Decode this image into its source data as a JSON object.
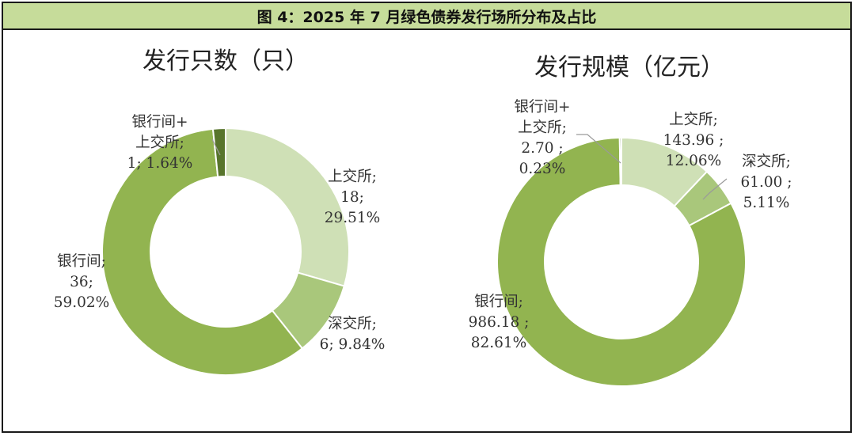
{
  "figure": {
    "title": "图 4：2025 年 7 月绿色债券发行场所分布及占比"
  },
  "chart_data": [
    {
      "type": "pie",
      "variant": "donut",
      "title": "发行只数（只）",
      "categories": [
        "上交所",
        "深交所",
        "银行间",
        "银行间+上交所"
      ],
      "values": [
        18,
        6,
        36,
        1
      ],
      "percents": [
        "29.51%",
        "9.84%",
        "59.02%",
        "1.64%"
      ],
      "colors": [
        "#cfe0b6",
        "#a9c77b",
        "#92b450",
        "#58752c"
      ],
      "labels": [
        [
          "上交所;",
          "18;",
          "29.51%"
        ],
        [
          "深交所;",
          "6; 9.84%"
        ],
        [
          "银行间;",
          "36;",
          "59.02%"
        ],
        [
          "银行间+",
          "上交所;",
          "1; 1.64%"
        ]
      ]
    },
    {
      "type": "pie",
      "variant": "donut",
      "title": "发行规模（亿元）",
      "categories": [
        "上交所",
        "深交所",
        "银行间",
        "银行间+上交所"
      ],
      "values": [
        143.96,
        61.0,
        986.18,
        2.7
      ],
      "percents": [
        "12.06%",
        "5.11%",
        "82.61%",
        "0.23%"
      ],
      "colors": [
        "#cfe0b6",
        "#a9c77b",
        "#92b450",
        "#58752c"
      ],
      "labels": [
        [
          "上交所;",
          "143.96 ;",
          "12.06%"
        ],
        [
          "深交所;",
          "61.00 ;",
          "5.11%"
        ],
        [
          "银行间;",
          "986.18 ;",
          "82.61%"
        ],
        [
          "银行间+",
          "上交所;",
          "2.70 ;",
          "0.23%"
        ]
      ]
    }
  ]
}
